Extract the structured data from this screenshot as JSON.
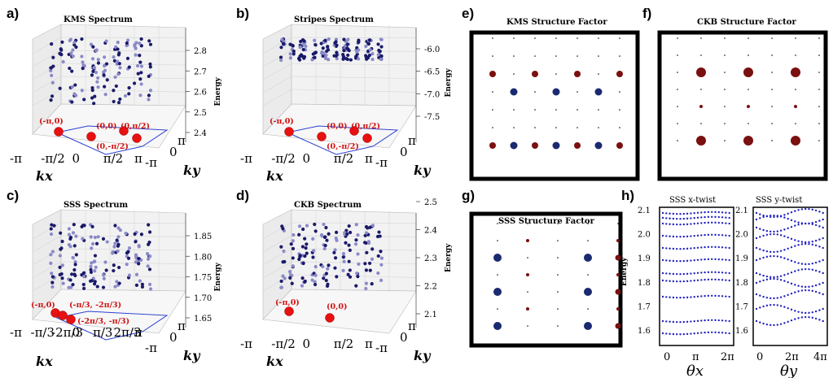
{
  "panel_letters": [
    "a)",
    "b)",
    "c)",
    "d)",
    "e)",
    "f)",
    "g)",
    "h)"
  ],
  "spectra": [
    {
      "id": "kms",
      "title": "KMS Spectrum",
      "energy_ticks": [
        "2.8",
        "2.7",
        "2.6",
        "2.5",
        "2.4"
      ],
      "kx_ticks": [
        "-π",
        "-π/2",
        "0",
        "π/2",
        "π"
      ],
      "ky_ticks": [
        "-π",
        "0",
        "π"
      ],
      "annotations": [
        "(-π,0)",
        "(0,0)",
        "(0,π/2)",
        "(0,-π/2)"
      ]
    },
    {
      "id": "stripes",
      "title": "Stripes Spectrum",
      "energy_ticks": [
        "-6.0",
        "-6.5",
        "-7.0",
        "-7.5"
      ],
      "kx_ticks": [
        "-π",
        "-π/2",
        "0",
        "π/2",
        "π"
      ],
      "ky_ticks": [
        "-π",
        "0",
        "π"
      ],
      "annotations": [
        "(-π,0)",
        "(0,0)",
        "(0,π/2)",
        "(0,-π/2)"
      ]
    },
    {
      "id": "sss",
      "title": "SSS Spectrum",
      "energy_ticks": [
        "1.85",
        "1.80",
        "1.75",
        "1.70",
        "1.65"
      ],
      "kx_ticks": [
        "-π",
        "-π/3",
        "-2π/3",
        "0",
        "π/3",
        "2π/3",
        "π"
      ],
      "ky_ticks": [
        "-π",
        "0",
        "π"
      ],
      "annotations": [
        "(-π,0)",
        "(-π/3, -2π/3)",
        "(-2π/3, -π/3)"
      ]
    },
    {
      "id": "ckb",
      "title": "CKB Spectrum",
      "energy_ticks": [
        "2.5",
        "2.4",
        "2.3",
        "2.2",
        "2.1"
      ],
      "kx_ticks": [
        "-π",
        "-π/2",
        "0",
        "π/2",
        "π"
      ],
      "ky_ticks": [
        "-π",
        "0",
        "π"
      ],
      "annotations": [
        "(-π,0)",
        "(0,0)"
      ]
    }
  ],
  "energy_label": "Energy",
  "kx_label": "kx",
  "ky_label": "ky",
  "structure_factors": [
    {
      "id": "kms",
      "title": "KMS Structure Factor"
    },
    {
      "id": "ckb",
      "title": "CKB Structure Factor"
    },
    {
      "id": "sss",
      "title": "SSS Structure Factor"
    }
  ],
  "twist": {
    "x_title": "SSS x-twist",
    "y_title": "SSS y-twist",
    "yticks": [
      "2.1",
      "2.0",
      "1.9",
      "1.8",
      "1.7",
      "1.6"
    ],
    "xticks": [
      "0",
      "π",
      "2π"
    ],
    "yxticks": [
      "0",
      "2π",
      "4π"
    ],
    "x_label": "θx",
    "y_label": "θy",
    "energy_label": "Energy"
  },
  "colors": {
    "red": "#e81010",
    "darkred": "#7a1010",
    "navy": "#1a1a6a",
    "blue": "#2020c0",
    "lightblue": "#8a8ac8"
  }
}
